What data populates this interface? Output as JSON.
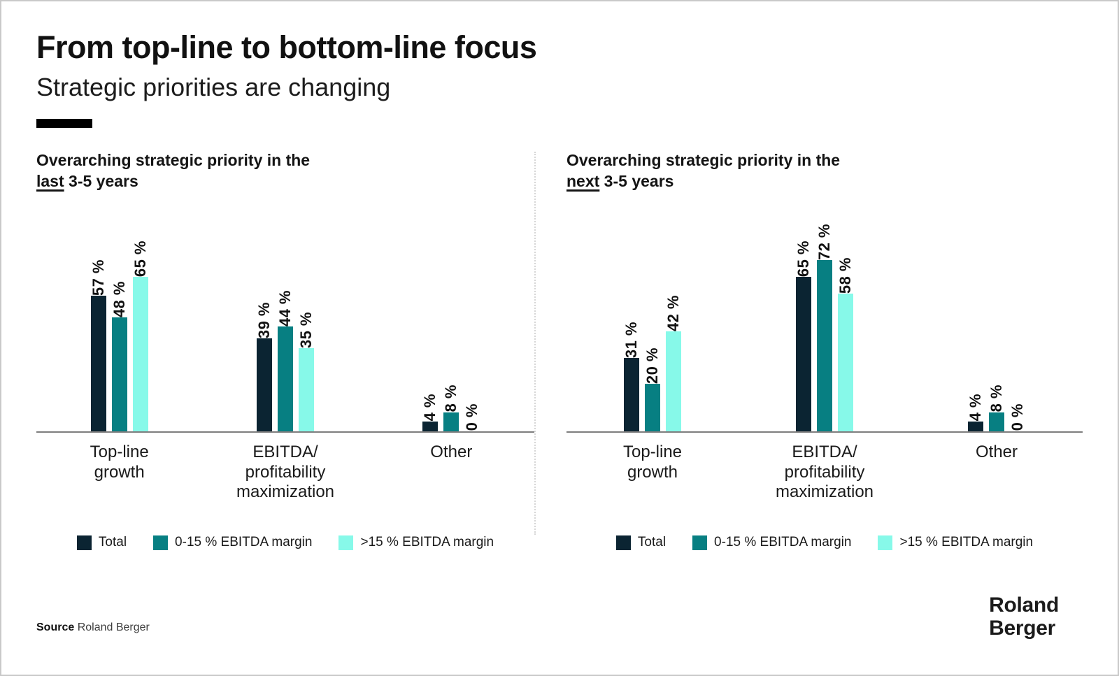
{
  "header": {
    "title": "From top-line to bottom-line focus",
    "subtitle": "Strategic priorities are changing"
  },
  "colors": {
    "navy": "#0b2432",
    "teal": "#077f82",
    "mint": "#87f9e9",
    "axis": "#7e7e7e"
  },
  "legend": [
    {
      "name": "Total",
      "color_key": "navy"
    },
    {
      "name": "0-15 % EBITDA margin",
      "color_key": "teal"
    },
    {
      "name": ">15 % EBITDA margin",
      "color_key": "mint"
    }
  ],
  "chart_data": [
    {
      "type": "bar",
      "title_line1": "Overarching strategic priority in the",
      "title_emphasis": "last",
      "title_rest": " 3-5 years",
      "categories": [
        "Top-line\ngrowth",
        "EBITDA/\nprofitability\nmaximization",
        "Other"
      ],
      "series": [
        {
          "name": "Total",
          "color_key": "navy",
          "values": [
            57,
            39,
            4
          ]
        },
        {
          "name": "0-15 % EBITDA margin",
          "color_key": "teal",
          "values": [
            48,
            44,
            8
          ]
        },
        {
          "name": ">15 % EBITDA margin",
          "color_key": "mint",
          "values": [
            65,
            35,
            0
          ]
        }
      ],
      "unit": "%",
      "ylim": [
        0,
        100
      ],
      "grid": false,
      "legend_position": "bottom",
      "value_label_style": "rotated-90ccw"
    },
    {
      "type": "bar",
      "title_line1": "Overarching strategic priority in the",
      "title_emphasis": "next",
      "title_rest": " 3-5 years",
      "categories": [
        "Top-line\ngrowth",
        "EBITDA/\nprofitability\nmaximization",
        "Other"
      ],
      "series": [
        {
          "name": "Total",
          "color_key": "navy",
          "values": [
            31,
            65,
            4
          ]
        },
        {
          "name": "0-15 % EBITDA margin",
          "color_key": "teal",
          "values": [
            20,
            72,
            8
          ]
        },
        {
          "name": ">15 % EBITDA margin",
          "color_key": "mint",
          "values": [
            42,
            58,
            0
          ]
        }
      ],
      "unit": "%",
      "ylim": [
        0,
        100
      ],
      "grid": false,
      "legend_position": "bottom",
      "value_label_style": "rotated-90ccw"
    }
  ],
  "footer": {
    "source_label": "Source",
    "source_value": "Roland Berger",
    "logo_line1": "Roland",
    "logo_line2": "Berger"
  }
}
